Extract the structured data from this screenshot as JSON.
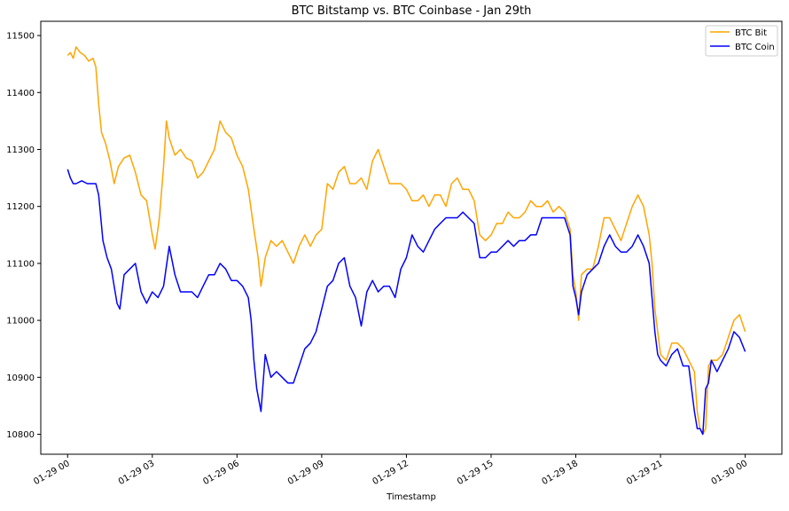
{
  "chart_data": {
    "type": "line",
    "title": "BTC Bitstamp vs. BTC Coinbase - Jan 29th",
    "xlabel": "Timestamp",
    "ylabel": "",
    "x_unit": "hours since 01-29 00:00",
    "xlim": [
      -0.95,
      25.3
    ],
    "ylim": [
      10765,
      11525
    ],
    "x_ticks": [
      {
        "x": 0,
        "label": "01-29 00"
      },
      {
        "x": 3,
        "label": "01-29 03"
      },
      {
        "x": 6,
        "label": "01-29 06"
      },
      {
        "x": 9,
        "label": "01-29 09"
      },
      {
        "x": 12,
        "label": "01-29 12"
      },
      {
        "x": 15,
        "label": "01-29 15"
      },
      {
        "x": 18,
        "label": "01-29 18"
      },
      {
        "x": 21,
        "label": "01-29 21"
      },
      {
        "x": 24,
        "label": "01-30 00"
      }
    ],
    "y_ticks": [
      {
        "y": 10800,
        "label": "10800"
      },
      {
        "y": 10900,
        "label": "10900"
      },
      {
        "y": 11000,
        "label": "11000"
      },
      {
        "y": 11100,
        "label": "11100"
      },
      {
        "y": 11200,
        "label": "11200"
      },
      {
        "y": 11300,
        "label": "11300"
      },
      {
        "y": 11400,
        "label": "11400"
      },
      {
        "y": 11500,
        "label": "11500"
      }
    ],
    "legend_position": "top-right",
    "series": [
      {
        "name": "BTC Bit",
        "color": "#ffa500",
        "points": [
          [
            0,
            11465
          ],
          [
            0.1,
            11470
          ],
          [
            0.2,
            11460
          ],
          [
            0.3,
            11480
          ],
          [
            0.45,
            11470
          ],
          [
            0.6,
            11465
          ],
          [
            0.75,
            11455
          ],
          [
            0.9,
            11460
          ],
          [
            1.0,
            11445
          ],
          [
            1.1,
            11380
          ],
          [
            1.2,
            11330
          ],
          [
            1.35,
            11310
          ],
          [
            1.5,
            11280
          ],
          [
            1.65,
            11240
          ],
          [
            1.8,
            11270
          ],
          [
            2.0,
            11285
          ],
          [
            2.2,
            11290
          ],
          [
            2.4,
            11260
          ],
          [
            2.6,
            11220
          ],
          [
            2.8,
            11210
          ],
          [
            3.0,
            11150
          ],
          [
            3.1,
            11125
          ],
          [
            3.25,
            11180
          ],
          [
            3.4,
            11270
          ],
          [
            3.5,
            11350
          ],
          [
            3.6,
            11320
          ],
          [
            3.8,
            11290
          ],
          [
            4.0,
            11300
          ],
          [
            4.2,
            11285
          ],
          [
            4.4,
            11280
          ],
          [
            4.6,
            11250
          ],
          [
            4.8,
            11260
          ],
          [
            5.0,
            11280
          ],
          [
            5.2,
            11300
          ],
          [
            5.4,
            11350
          ],
          [
            5.6,
            11330
          ],
          [
            5.8,
            11320
          ],
          [
            6.0,
            11290
          ],
          [
            6.2,
            11270
          ],
          [
            6.4,
            11230
          ],
          [
            6.6,
            11160
          ],
          [
            6.75,
            11110
          ],
          [
            6.85,
            11060
          ],
          [
            7.0,
            11110
          ],
          [
            7.2,
            11140
          ],
          [
            7.4,
            11130
          ],
          [
            7.6,
            11140
          ],
          [
            7.8,
            11120
          ],
          [
            8.0,
            11100
          ],
          [
            8.2,
            11130
          ],
          [
            8.4,
            11150
          ],
          [
            8.6,
            11130
          ],
          [
            8.8,
            11150
          ],
          [
            9.0,
            11160
          ],
          [
            9.2,
            11240
          ],
          [
            9.4,
            11230
          ],
          [
            9.6,
            11260
          ],
          [
            9.8,
            11270
          ],
          [
            10.0,
            11240
          ],
          [
            10.2,
            11240
          ],
          [
            10.4,
            11250
          ],
          [
            10.6,
            11230
          ],
          [
            10.8,
            11280
          ],
          [
            11.0,
            11300
          ],
          [
            11.2,
            11270
          ],
          [
            11.4,
            11240
          ],
          [
            11.6,
            11240
          ],
          [
            11.8,
            11240
          ],
          [
            12.0,
            11230
          ],
          [
            12.2,
            11210
          ],
          [
            12.4,
            11210
          ],
          [
            12.6,
            11220
          ],
          [
            12.8,
            11200
          ],
          [
            13.0,
            11220
          ],
          [
            13.2,
            11220
          ],
          [
            13.4,
            11200
          ],
          [
            13.6,
            11240
          ],
          [
            13.8,
            11250
          ],
          [
            14.0,
            11230
          ],
          [
            14.2,
            11230
          ],
          [
            14.4,
            11210
          ],
          [
            14.6,
            11150
          ],
          [
            14.8,
            11140
          ],
          [
            15.0,
            11150
          ],
          [
            15.2,
            11170
          ],
          [
            15.4,
            11170
          ],
          [
            15.6,
            11190
          ],
          [
            15.8,
            11180
          ],
          [
            16.0,
            11180
          ],
          [
            16.2,
            11190
          ],
          [
            16.4,
            11210
          ],
          [
            16.6,
            11200
          ],
          [
            16.8,
            11200
          ],
          [
            17.0,
            11210
          ],
          [
            17.2,
            11190
          ],
          [
            17.4,
            11200
          ],
          [
            17.6,
            11190
          ],
          [
            17.8,
            11160
          ],
          [
            17.9,
            11080
          ],
          [
            18.0,
            11050
          ],
          [
            18.1,
            11000
          ],
          [
            18.2,
            11080
          ],
          [
            18.4,
            11090
          ],
          [
            18.6,
            11090
          ],
          [
            18.8,
            11130
          ],
          [
            19.0,
            11180
          ],
          [
            19.2,
            11180
          ],
          [
            19.4,
            11160
          ],
          [
            19.6,
            11140
          ],
          [
            19.8,
            11170
          ],
          [
            20.0,
            11200
          ],
          [
            20.2,
            11220
          ],
          [
            20.4,
            11200
          ],
          [
            20.6,
            11150
          ],
          [
            20.7,
            11100
          ],
          [
            20.8,
            11020
          ],
          [
            20.9,
            10980
          ],
          [
            21.0,
            10940
          ],
          [
            21.2,
            10930
          ],
          [
            21.4,
            10960
          ],
          [
            21.6,
            10960
          ],
          [
            21.8,
            10950
          ],
          [
            22.0,
            10930
          ],
          [
            22.2,
            10910
          ],
          [
            22.3,
            10840
          ],
          [
            22.4,
            10810
          ],
          [
            22.5,
            10800
          ],
          [
            22.6,
            10810
          ],
          [
            22.7,
            10920
          ],
          [
            22.8,
            10930
          ],
          [
            23.0,
            10930
          ],
          [
            23.2,
            10940
          ],
          [
            23.4,
            10970
          ],
          [
            23.6,
            11000
          ],
          [
            23.8,
            11010
          ],
          [
            24.0,
            10980
          ]
        ]
      },
      {
        "name": "BTC Coin",
        "color": "#0000ff",
        "points": [
          [
            0,
            11265
          ],
          [
            0.1,
            11250
          ],
          [
            0.2,
            11240
          ],
          [
            0.3,
            11240
          ],
          [
            0.5,
            11245
          ],
          [
            0.7,
            11240
          ],
          [
            0.9,
            11240
          ],
          [
            1.0,
            11240
          ],
          [
            1.1,
            11220
          ],
          [
            1.25,
            11140
          ],
          [
            1.4,
            11110
          ],
          [
            1.55,
            11090
          ],
          [
            1.65,
            11060
          ],
          [
            1.75,
            11030
          ],
          [
            1.85,
            11020
          ],
          [
            2.0,
            11080
          ],
          [
            2.2,
            11090
          ],
          [
            2.4,
            11100
          ],
          [
            2.6,
            11050
          ],
          [
            2.8,
            11030
          ],
          [
            3.0,
            11050
          ],
          [
            3.2,
            11040
          ],
          [
            3.4,
            11060
          ],
          [
            3.6,
            11130
          ],
          [
            3.8,
            11080
          ],
          [
            4.0,
            11050
          ],
          [
            4.2,
            11050
          ],
          [
            4.4,
            11050
          ],
          [
            4.6,
            11040
          ],
          [
            4.8,
            11060
          ],
          [
            5.0,
            11080
          ],
          [
            5.2,
            11080
          ],
          [
            5.4,
            11100
          ],
          [
            5.6,
            11090
          ],
          [
            5.8,
            11070
          ],
          [
            6.0,
            11070
          ],
          [
            6.2,
            11060
          ],
          [
            6.4,
            11040
          ],
          [
            6.5,
            11000
          ],
          [
            6.6,
            10930
          ],
          [
            6.7,
            10880
          ],
          [
            6.85,
            10840
          ],
          [
            7.0,
            10940
          ],
          [
            7.2,
            10900
          ],
          [
            7.4,
            10910
          ],
          [
            7.6,
            10900
          ],
          [
            7.8,
            10890
          ],
          [
            8.0,
            10890
          ],
          [
            8.2,
            10920
          ],
          [
            8.4,
            10950
          ],
          [
            8.6,
            10960
          ],
          [
            8.8,
            10980
          ],
          [
            9.0,
            11020
          ],
          [
            9.2,
            11060
          ],
          [
            9.4,
            11070
          ],
          [
            9.6,
            11100
          ],
          [
            9.8,
            11110
          ],
          [
            10.0,
            11060
          ],
          [
            10.2,
            11040
          ],
          [
            10.4,
            10990
          ],
          [
            10.6,
            11050
          ],
          [
            10.8,
            11070
          ],
          [
            11.0,
            11050
          ],
          [
            11.2,
            11060
          ],
          [
            11.4,
            11060
          ],
          [
            11.6,
            11040
          ],
          [
            11.8,
            11090
          ],
          [
            12.0,
            11110
          ],
          [
            12.2,
            11150
          ],
          [
            12.4,
            11130
          ],
          [
            12.6,
            11120
          ],
          [
            12.8,
            11140
          ],
          [
            13.0,
            11160
          ],
          [
            13.2,
            11170
          ],
          [
            13.4,
            11180
          ],
          [
            13.6,
            11180
          ],
          [
            13.8,
            11180
          ],
          [
            14.0,
            11190
          ],
          [
            14.2,
            11180
          ],
          [
            14.4,
            11170
          ],
          [
            14.6,
            11110
          ],
          [
            14.8,
            11110
          ],
          [
            15.0,
            11120
          ],
          [
            15.2,
            11120
          ],
          [
            15.4,
            11130
          ],
          [
            15.6,
            11140
          ],
          [
            15.8,
            11130
          ],
          [
            16.0,
            11140
          ],
          [
            16.2,
            11140
          ],
          [
            16.4,
            11150
          ],
          [
            16.6,
            11150
          ],
          [
            16.8,
            11180
          ],
          [
            17.0,
            11180
          ],
          [
            17.2,
            11180
          ],
          [
            17.4,
            11180
          ],
          [
            17.6,
            11180
          ],
          [
            17.8,
            11150
          ],
          [
            17.9,
            11060
          ],
          [
            18.0,
            11040
          ],
          [
            18.1,
            11010
          ],
          [
            18.2,
            11050
          ],
          [
            18.4,
            11080
          ],
          [
            18.6,
            11090
          ],
          [
            18.8,
            11100
          ],
          [
            19.0,
            11130
          ],
          [
            19.2,
            11150
          ],
          [
            19.4,
            11130
          ],
          [
            19.6,
            11120
          ],
          [
            19.8,
            11120
          ],
          [
            20.0,
            11130
          ],
          [
            20.2,
            11150
          ],
          [
            20.4,
            11130
          ],
          [
            20.6,
            11100
          ],
          [
            20.7,
            11040
          ],
          [
            20.8,
            10980
          ],
          [
            20.9,
            10940
          ],
          [
            21.0,
            10930
          ],
          [
            21.2,
            10920
          ],
          [
            21.4,
            10940
          ],
          [
            21.6,
            10950
          ],
          [
            21.8,
            10920
          ],
          [
            22.0,
            10920
          ],
          [
            22.1,
            10880
          ],
          [
            22.2,
            10840
          ],
          [
            22.3,
            10810
          ],
          [
            22.4,
            10810
          ],
          [
            22.5,
            10800
          ],
          [
            22.6,
            10880
          ],
          [
            22.7,
            10890
          ],
          [
            22.8,
            10930
          ],
          [
            23.0,
            10910
          ],
          [
            23.2,
            10930
          ],
          [
            23.4,
            10950
          ],
          [
            23.6,
            10980
          ],
          [
            23.8,
            10970
          ],
          [
            24.0,
            10945
          ]
        ]
      }
    ]
  }
}
